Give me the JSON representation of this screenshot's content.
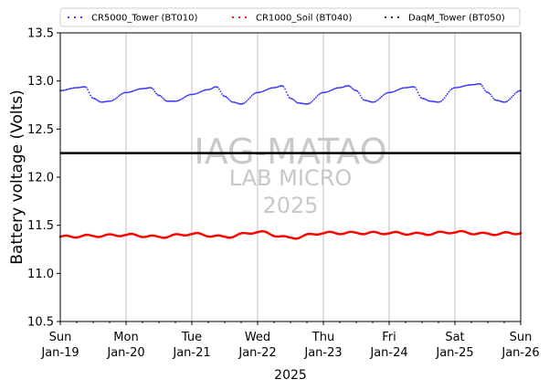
{
  "chart_data": {
    "type": "scatter",
    "xlabel": "2025",
    "ylabel": "Battery voltage (Volts)",
    "ylim": [
      10.5,
      13.5
    ],
    "xlim": [
      "2025-01-19",
      "2025-01-26"
    ],
    "y_ticks": [
      10.5,
      11.0,
      11.5,
      12.0,
      12.5,
      13.0,
      13.5
    ],
    "x_ticks": [
      {
        "date": "2025-01-19",
        "day": "Sun",
        "label": "Jan-19"
      },
      {
        "date": "2025-01-20",
        "day": "Mon",
        "label": "Jan-20"
      },
      {
        "date": "2025-01-21",
        "day": "Tue",
        "label": "Jan-21"
      },
      {
        "date": "2025-01-22",
        "day": "Wed",
        "label": "Jan-22"
      },
      {
        "date": "2025-01-23",
        "day": "Thu",
        "label": "Jan-23"
      },
      {
        "date": "2025-01-24",
        "day": "Fri",
        "label": "Jan-24"
      },
      {
        "date": "2025-01-25",
        "day": "Sat",
        "label": "Jan-25"
      },
      {
        "date": "2025-01-26",
        "day": "Sun",
        "label": "Jan-26"
      }
    ],
    "vertical_grid": true,
    "horizontal_grid": false,
    "legend_position": "top",
    "reference_line": {
      "y": 12.25,
      "color": "#000000"
    },
    "series": [
      {
        "name": "CR5000_Tower (BT010)",
        "color": "#2b2bff",
        "x": [
          "2025-01-19 00:00",
          "2025-01-19 06:00",
          "2025-01-19 09:00",
          "2025-01-19 12:00",
          "2025-01-19 15:00",
          "2025-01-19 18:00",
          "2025-01-20 00:00",
          "2025-01-20 06:00",
          "2025-01-20 09:00",
          "2025-01-20 12:00",
          "2025-01-20 15:00",
          "2025-01-20 18:00",
          "2025-01-21 00:00",
          "2025-01-21 06:00",
          "2025-01-21 09:00",
          "2025-01-21 12:00",
          "2025-01-21 15:00",
          "2025-01-21 18:00",
          "2025-01-22 00:00",
          "2025-01-22 06:00",
          "2025-01-22 09:00",
          "2025-01-22 12:00",
          "2025-01-22 15:00",
          "2025-01-22 18:00",
          "2025-01-23 00:00",
          "2025-01-23 06:00",
          "2025-01-23 09:00",
          "2025-01-23 12:00",
          "2025-01-23 15:00",
          "2025-01-23 18:00",
          "2025-01-24 00:00",
          "2025-01-24 06:00",
          "2025-01-24 09:00",
          "2025-01-24 12:00",
          "2025-01-24 15:00",
          "2025-01-24 18:00",
          "2025-01-25 00:00",
          "2025-01-25 06:00",
          "2025-01-25 09:00",
          "2025-01-25 12:00",
          "2025-01-25 15:00",
          "2025-01-25 18:00",
          "2025-01-26 00:00"
        ],
        "y": [
          12.9,
          12.93,
          12.94,
          12.82,
          12.78,
          12.79,
          12.88,
          12.92,
          12.93,
          12.85,
          12.79,
          12.79,
          12.86,
          12.91,
          12.94,
          12.84,
          12.78,
          12.76,
          12.88,
          12.93,
          12.95,
          12.82,
          12.77,
          12.76,
          12.88,
          12.93,
          12.95,
          12.9,
          12.8,
          12.78,
          12.88,
          12.93,
          12.94,
          12.82,
          12.79,
          12.78,
          12.93,
          12.96,
          12.97,
          12.88,
          12.8,
          12.78,
          12.9
        ]
      },
      {
        "name": "CR1000_Soil (BT040)",
        "color": "#ff0000",
        "x": [
          "2025-01-19 00:00",
          "2025-01-19 12:00",
          "2025-01-20 00:00",
          "2025-01-20 12:00",
          "2025-01-21 00:00",
          "2025-01-21 12:00",
          "2025-01-22 00:00",
          "2025-01-22 12:00",
          "2025-01-23 00:00",
          "2025-01-23 12:00",
          "2025-01-24 00:00",
          "2025-01-24 12:00",
          "2025-01-25 00:00",
          "2025-01-25 12:00",
          "2025-01-26 00:00"
        ],
        "y": [
          11.38,
          11.39,
          11.4,
          11.38,
          11.41,
          11.38,
          11.43,
          11.37,
          11.42,
          11.42,
          11.42,
          11.41,
          11.43,
          11.41,
          11.42
        ]
      },
      {
        "name": "DaqM_Tower (BT050)",
        "color": "#1a1a1a",
        "x": [],
        "y": []
      }
    ],
    "watermark": [
      "IAG-MATAO",
      "LAB MICRO",
      "2025"
    ]
  }
}
